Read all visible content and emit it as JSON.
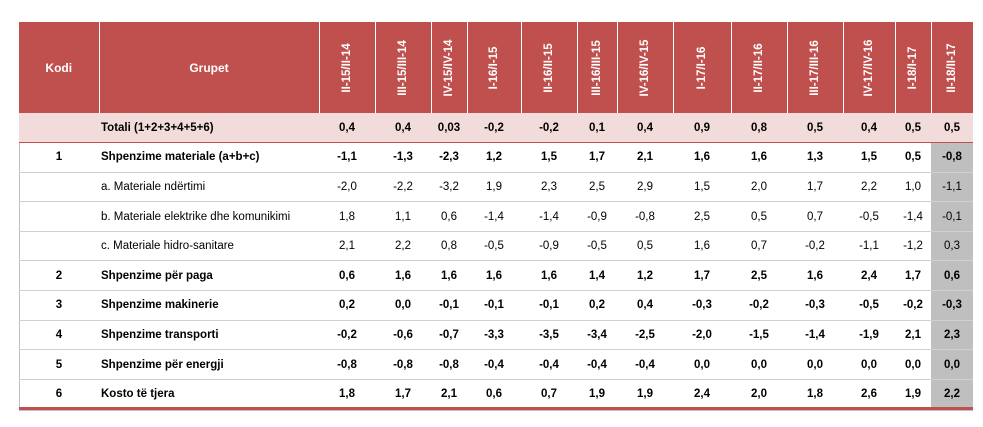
{
  "header": {
    "kodi": "Kodi",
    "grupet": "Grupet",
    "periods": [
      "II-15/II-14",
      "III-15/III-14",
      "IV-15/IV-14",
      "I-16/I-15",
      "II-16/II-15",
      "III-16/III-15",
      "IV-16/IV-15",
      "I-17/I-16",
      "II-17/II-16",
      "III-17/III-16",
      "IV-17/IV-16",
      "I-18/I-17",
      "II-18/II-17"
    ]
  },
  "rows": [
    {
      "kodi": "",
      "grupet": "Totali (1+2+3+4+5+6)",
      "type": "total",
      "values": [
        "0,4",
        "0,4",
        "0,03",
        "-0,2",
        "-0,2",
        "0,1",
        "0,4",
        "0,9",
        "0,8",
        "0,5",
        "0,4",
        "0,5",
        "0,5"
      ]
    },
    {
      "kodi": "1",
      "grupet": "Shpenzime materiale (a+b+c)",
      "type": "main",
      "values": [
        "-1,1",
        "-1,3",
        "-2,3",
        "1,2",
        "1,5",
        "1,7",
        "2,1",
        "1,6",
        "1,6",
        "1,3",
        "1,5",
        "0,5",
        "-0,8"
      ]
    },
    {
      "kodi": "",
      "grupet": "a. Materiale ndërtimi",
      "type": "sub",
      "values": [
        "-2,0",
        "-2,2",
        "-3,2",
        "1,9",
        "2,3",
        "2,5",
        "2,9",
        "1,5",
        "2,0",
        "1,7",
        "2,2",
        "1,0",
        "-1,1"
      ]
    },
    {
      "kodi": "",
      "grupet": "b. Materiale elektrike dhe komunikimi",
      "type": "sub",
      "values": [
        "1,8",
        "1,1",
        "0,6",
        "-1,4",
        "-1,4",
        "-0,9",
        "-0,8",
        "2,5",
        "0,5",
        "0,7",
        "-0,5",
        "-1,4",
        "-0,1"
      ]
    },
    {
      "kodi": "",
      "grupet": "c. Materiale hidro-sanitare",
      "type": "sub",
      "values": [
        "2,1",
        "2,2",
        "0,8",
        "-0,5",
        "-0,9",
        "-0,5",
        "0,5",
        "1,6",
        "0,7",
        "-0,2",
        "-1,1",
        "-1,2",
        "0,3"
      ]
    },
    {
      "kodi": "2",
      "grupet": "Shpenzime për paga",
      "type": "main",
      "values": [
        "0,6",
        "1,6",
        "1,6",
        "1,6",
        "1,6",
        "1,4",
        "1,2",
        "1,7",
        "2,5",
        "1,6",
        "2,4",
        "1,7",
        "0,6"
      ]
    },
    {
      "kodi": "3",
      "grupet": "Shpenzime makinerie",
      "type": "main",
      "values": [
        "0,2",
        "0,0",
        "-0,1",
        "-0,1",
        "-0,1",
        "0,2",
        "0,4",
        "-0,3",
        "-0,2",
        "-0,3",
        "-0,5",
        "-0,2",
        "-0,3"
      ]
    },
    {
      "kodi": "4",
      "grupet": "Shpenzime transporti",
      "type": "main",
      "values": [
        "-0,2",
        "-0,6",
        "-0,7",
        "-3,3",
        "-3,5",
        "-3,4",
        "-2,5",
        "-2,0",
        "-1,5",
        "-1,4",
        "-1,9",
        "2,1",
        "2,3"
      ]
    },
    {
      "kodi": "5",
      "grupet": "Shpenzime për energji",
      "type": "main",
      "values": [
        "-0,8",
        "-0,8",
        "-0,8",
        "-0,4",
        "-0,4",
        "-0,4",
        "-0,4",
        "0,0",
        "0,0",
        "0,0",
        "0,0",
        "0,0",
        "0,0"
      ]
    },
    {
      "kodi": "6",
      "grupet": "Kosto të tjera",
      "type": "main",
      "values": [
        "1,8",
        "1,7",
        "2,1",
        "0,6",
        "0,7",
        "1,9",
        "1,9",
        "2,4",
        "2,0",
        "1,8",
        "2,6",
        "1,9",
        "2,2"
      ]
    }
  ],
  "colors": {
    "header_bg": "#c0504d",
    "total_bg": "#f2dcdb",
    "last_col_bg": "#bfbfbf"
  }
}
